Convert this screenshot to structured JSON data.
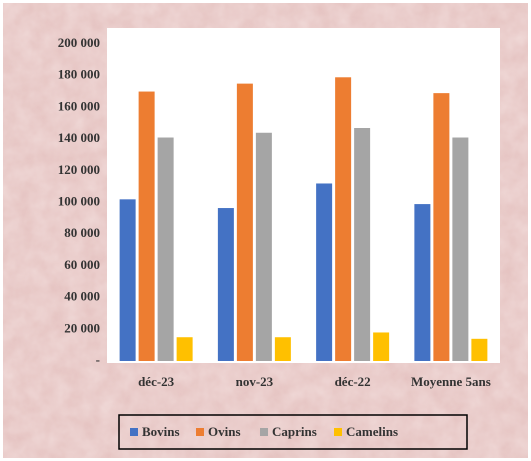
{
  "chart_data": {
    "type": "bar",
    "categories": [
      "déc-23",
      "nov-23",
      "déc-22",
      "Moyenne 5ans"
    ],
    "series": [
      {
        "name": "Bovins",
        "color": "#4472c4",
        "values": [
          102000,
          96500,
          112000,
          99000
        ]
      },
      {
        "name": "Ovins",
        "color": "#ed7d31",
        "values": [
          170000,
          175000,
          179000,
          169000
        ]
      },
      {
        "name": "Caprins",
        "color": "#a5a5a5",
        "values": [
          141000,
          144000,
          147000,
          141000
        ]
      },
      {
        "name": "Camelins",
        "color": "#ffc000",
        "values": [
          15000,
          15000,
          18000,
          14000
        ]
      }
    ],
    "ylim": [
      0,
      200000
    ],
    "yticks": [
      {
        "value": 0,
        "label": "-"
      },
      {
        "value": 20000,
        "label": "20 000"
      },
      {
        "value": 40000,
        "label": "40 000"
      },
      {
        "value": 60000,
        "label": "60 000"
      },
      {
        "value": 80000,
        "label": "80 000"
      },
      {
        "value": 100000,
        "label": "100 000"
      },
      {
        "value": 120000,
        "label": "120 000"
      },
      {
        "value": 140000,
        "label": "140 000"
      },
      {
        "value": 160000,
        "label": "160 000"
      },
      {
        "value": 180000,
        "label": "180 000"
      },
      {
        "value": 200000,
        "label": "200 000"
      }
    ],
    "grid": false,
    "legend": "bottom"
  }
}
